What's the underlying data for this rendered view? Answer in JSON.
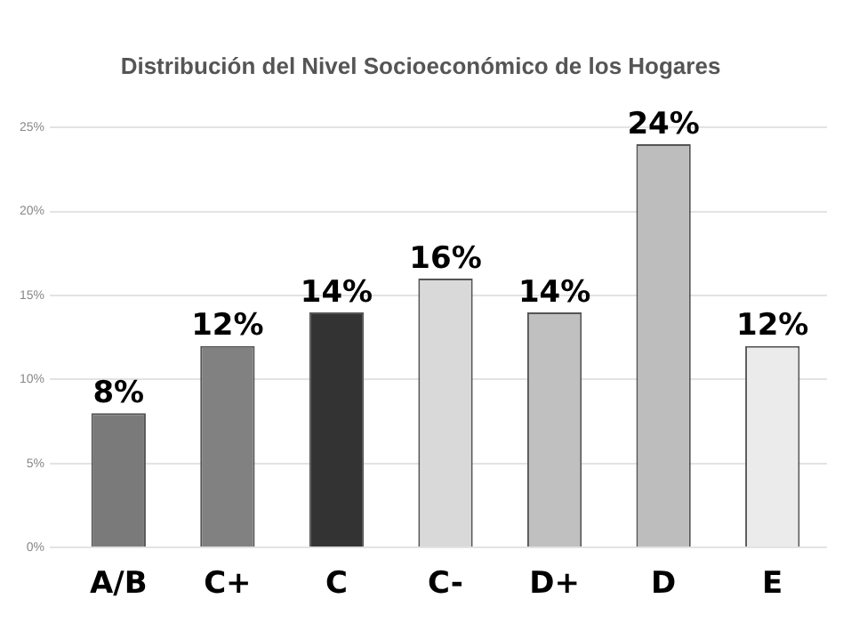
{
  "chart_data": {
    "type": "bar",
    "title": "Distribución del Nivel Socioeconómico de los Hogares",
    "categories": [
      "A/B",
      "C+",
      "C",
      "C-",
      "D+",
      "D",
      "E"
    ],
    "values": [
      8,
      12,
      14,
      16,
      14,
      24,
      12
    ],
    "colors": [
      "#7a7a7a",
      "#818181",
      "#333333",
      "#d9d9d9",
      "#c0c0c0",
      "#bdbdbd",
      "#ebebeb"
    ],
    "value_labels": [
      "8%",
      "12%",
      "14%",
      "16%",
      "14%",
      "24%",
      "12%"
    ],
    "ylim": [
      0,
      25
    ],
    "yticks": [
      {
        "value": 0,
        "label": "0%"
      },
      {
        "value": 5,
        "label": "5%"
      },
      {
        "value": 10,
        "label": "10%"
      },
      {
        "value": 15,
        "label": "15%"
      },
      {
        "value": 20,
        "label": "20%"
      },
      {
        "value": 25,
        "label": "25%"
      }
    ],
    "grid": "y"
  }
}
